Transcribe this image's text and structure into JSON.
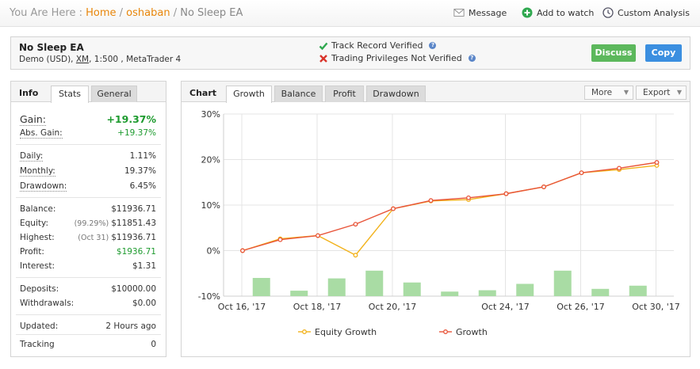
{
  "breadcrumb": {
    "prefix": "You Are Here :",
    "home": "Home",
    "user": "oshaban",
    "current": "No Sleep EA",
    "separator": "/"
  },
  "top_links": {
    "message": "Message",
    "watch": "Add to watch",
    "analysis": "Custom Analysis"
  },
  "account": {
    "name": "No Sleep EA",
    "sub_prefix": "Demo (USD),",
    "broker": "XM",
    "sub_suffix": ", 1:500 , MetaTrader 4",
    "track_record": "Track Record Verified",
    "privileges": "Trading Privileges Not Verified",
    "help": "?",
    "discuss": "Discuss",
    "copy": "Copy"
  },
  "info": {
    "title": "Info",
    "tabs": [
      "Stats",
      "General"
    ],
    "gain_label": "Gain:",
    "gain_value": "+19.37%",
    "abs_gain_label": "Abs. Gain:",
    "abs_gain_value": "+19.37%",
    "daily_label": "Daily:",
    "daily_value": "1.11%",
    "monthly_label": "Monthly:",
    "monthly_value": "19.37%",
    "drawdown_label": "Drawdown:",
    "drawdown_value": "6.45%",
    "balance_label": "Balance:",
    "balance_value": "$11936.71",
    "equity_label": "Equity:",
    "equity_note": "(99.29%)",
    "equity_value": "$11851.43",
    "highest_label": "Highest:",
    "highest_note": "(Oct 31)",
    "highest_value": "$11936.71",
    "profit_label": "Profit:",
    "profit_value": "$1936.71",
    "interest_label": "Interest:",
    "interest_value": "$1.31",
    "deposits_label": "Deposits:",
    "deposits_value": "$10000.00",
    "withdrawals_label": "Withdrawals:",
    "withdrawals_value": "$0.00",
    "updated_label": "Updated:",
    "updated_value": "2 Hours ago",
    "tracking_label": "Tracking",
    "tracking_value": "0"
  },
  "chart_panel": {
    "title": "Chart",
    "tabs": [
      "Growth",
      "Balance",
      "Profit",
      "Drawdown"
    ],
    "more": "More",
    "export": "Export"
  },
  "colors": {
    "growth": "#e8553a",
    "equity": "#f2b21b",
    "bars": "#a9dca4",
    "accent": "#e8860b"
  },
  "chart_data": {
    "type": "line",
    "ylim": [
      -10,
      30
    ],
    "y_ticks": [
      "30%",
      "20%",
      "10%",
      "0%",
      "-10%"
    ],
    "y_tick_values": [
      30,
      20,
      10,
      0,
      -10
    ],
    "x_tick_labels": [
      "Oct 16, '17",
      "Oct 18, '17",
      "Oct 20, '17",
      "Oct 24, '17",
      "Oct 26, '17",
      "Oct 30, '17"
    ],
    "x_tick_index": [
      0,
      2,
      4,
      7,
      9,
      11
    ],
    "series": [
      {
        "name": "Equity Growth",
        "values": [
          0.0,
          2.6,
          3.3,
          -1.0,
          9.2,
          10.9,
          11.2,
          12.5,
          14.0,
          17.1,
          17.8,
          18.7
        ]
      },
      {
        "name": "Growth",
        "values": [
          0.0,
          2.4,
          3.3,
          5.8,
          9.2,
          11.0,
          11.6,
          12.5,
          14.0,
          17.1,
          18.1,
          19.37
        ]
      }
    ],
    "bars": [
      4.0,
      1.2,
      3.9,
      5.6,
      3.0,
      1.0,
      1.3,
      2.7,
      5.6,
      1.6,
      2.3
    ]
  }
}
